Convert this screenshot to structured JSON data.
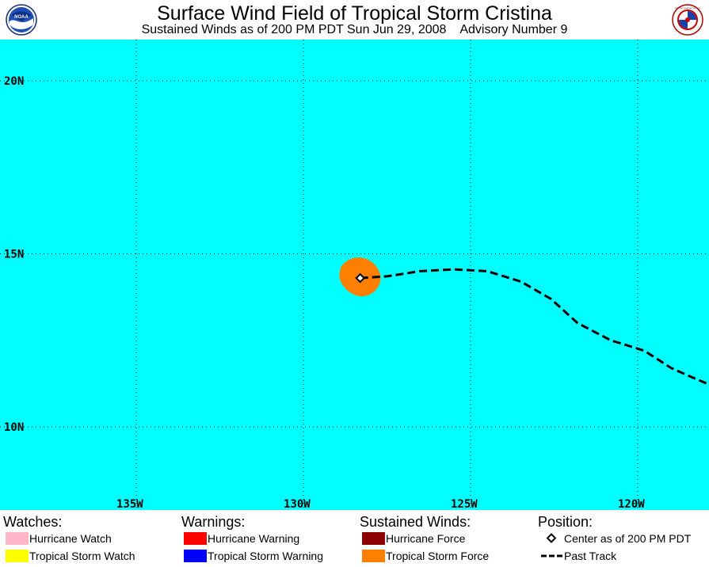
{
  "header": {
    "title": "Surface Wind Field of Tropical Storm Cristina",
    "subtitle": "Sustained Winds as of 200 PM PDT Sun Jun 29, 2008    Advisory Number 9"
  },
  "logos": {
    "left": "noaa-logo",
    "right": "nws-logo",
    "left_text": "NOAA",
    "right_text": "NATIONAL WEATHER SERVICE"
  },
  "map": {
    "ocean_color": "#00ffff",
    "grid": true,
    "lat_labels": [
      "20N",
      "15N",
      "10N"
    ],
    "lon_labels": [
      "135W",
      "130W",
      "125W",
      "120W"
    ],
    "storm": {
      "name": "Cristina",
      "center_lat": 14.3,
      "center_lon": -128.3,
      "tropical_storm_force_color": "#ff8000"
    },
    "past_track": [
      [
        -128.3,
        14.3
      ],
      [
        -127.5,
        14.35
      ],
      [
        -126.5,
        14.5
      ],
      [
        -125.5,
        14.55
      ],
      [
        -124.5,
        14.5
      ],
      [
        -123.5,
        14.2
      ],
      [
        -122.6,
        13.7
      ],
      [
        -121.8,
        13.0
      ],
      [
        -120.8,
        12.5
      ],
      [
        -119.8,
        12.2
      ],
      [
        -119.0,
        11.7
      ],
      [
        -118.3,
        11.4
      ],
      [
        -117.8,
        11.2
      ]
    ]
  },
  "legend": {
    "watches": {
      "heading": "Watches:",
      "items": [
        {
          "label": "Hurricane Watch",
          "color": "#ffb6c8"
        },
        {
          "label": "Tropical Storm Watch",
          "color": "#ffff00"
        }
      ]
    },
    "warnings": {
      "heading": "Warnings:",
      "items": [
        {
          "label": "Hurricane Warning",
          "color": "#ff0000"
        },
        {
          "label": "Tropical Storm Warning",
          "color": "#0000ff"
        }
      ]
    },
    "winds": {
      "heading": "Sustained Winds:",
      "items": [
        {
          "label": "Hurricane Force",
          "color": "#8b0000"
        },
        {
          "label": "Tropical Storm Force",
          "color": "#ff8000"
        }
      ]
    },
    "position": {
      "heading": "Position:",
      "items": [
        {
          "label": "Center as of 200 PM PDT",
          "icon": "diamond-icon"
        },
        {
          "label": "Past Track",
          "icon": "dashed-line-icon"
        }
      ]
    }
  }
}
